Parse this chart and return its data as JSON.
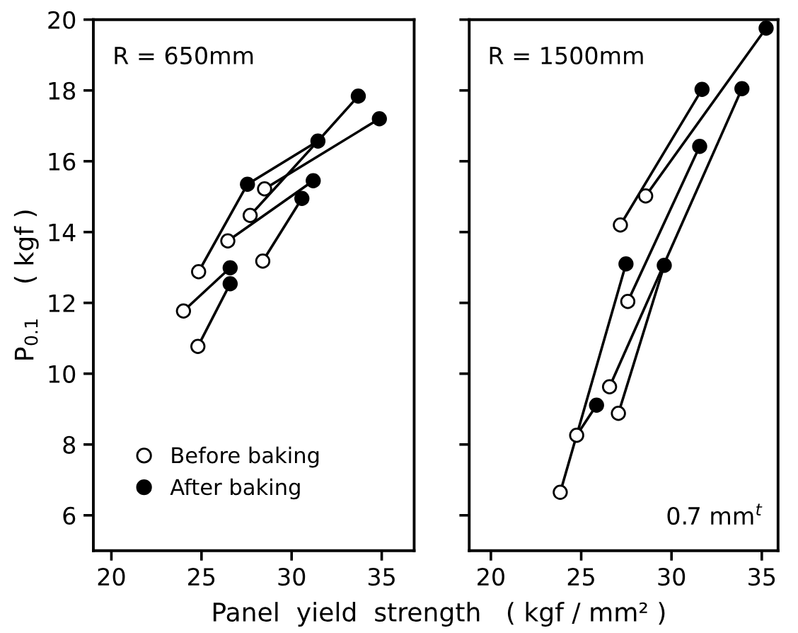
{
  "chart_data": [
    {
      "type": "scatter",
      "ylabel": "P$_{0.1}$    ( kgf )",
      "xlabel": "Panel  yield  strength   ( kgf / mm² )",
      "xlim": [
        19,
        36.8
      ],
      "ylim": [
        5,
        20
      ],
      "xticks": [
        20,
        25,
        30,
        35
      ],
      "yticks": [
        6,
        8,
        10,
        12,
        14,
        16,
        18,
        20
      ],
      "grid": false,
      "legend": "bottom left",
      "annotations": [
        "R = 650mm"
      ],
      "series": [
        {
          "name": "Before baking",
          "marker": "circle",
          "color": "#ffffff",
          "x": [
            24.84,
            24.0,
            24.8,
            26.46,
            27.7,
            28.5,
            28.4
          ],
          "values": [
            12.88,
            11.77,
            10.77,
            13.75,
            14.47,
            15.22,
            13.18
          ]
        },
        {
          "name": "After baking",
          "marker": "circle",
          "color": "#000000",
          "x": [
            27.55,
            31.46,
            33.7,
            34.87,
            31.2,
            30.57,
            26.59,
            26.59
          ],
          "values": [
            15.35,
            16.57,
            17.84,
            17.2,
            15.45,
            14.95,
            12.99,
            12.54
          ]
        },
        {
          "type": "line",
          "color": "#000000",
          "x": [
            24.84,
            27.55,
            31.46,
            33.7
          ],
          "values": [
            12.88,
            15.35,
            16.57,
            17.84
          ]
        },
        {
          "type": "line",
          "color": "#000000",
          "x": [
            27.7,
            31.46
          ],
          "values": [
            14.47,
            16.57
          ]
        },
        {
          "type": "line",
          "color": "#000000",
          "x": [
            28.5,
            34.87
          ],
          "values": [
            15.22,
            17.2
          ]
        },
        {
          "type": "line",
          "color": "#000000",
          "x": [
            26.46,
            31.2
          ],
          "values": [
            13.75,
            15.45
          ]
        },
        {
          "type": "line",
          "color": "#000000",
          "x": [
            28.4,
            30.57
          ],
          "values": [
            13.18,
            14.95
          ]
        },
        {
          "type": "line",
          "color": "#000000",
          "x": [
            24.0,
            26.59
          ],
          "values": [
            11.77,
            12.99
          ]
        },
        {
          "type": "line",
          "color": "#000000",
          "x": [
            24.8,
            26.59
          ],
          "values": [
            10.77,
            12.54
          ]
        }
      ]
    },
    {
      "type": "scatter",
      "xlim": [
        18.8,
        35.9
      ],
      "ylim": [
        5,
        20
      ],
      "xticks": [
        20,
        25,
        30,
        35
      ],
      "yticks": [
        6,
        8,
        10,
        12,
        14,
        16,
        18,
        20
      ],
      "grid": false,
      "tick_labels": "x",
      "annotations": [
        "R = 1500mm",
        "0.7 mm$^{t}$"
      ],
      "series": [
        {
          "marker": "circle",
          "color": "#ffffff",
          "x": [
            23.84,
            24.75,
            26.57,
            27.06,
            27.58,
            27.17,
            28.57
          ],
          "values": [
            6.65,
            8.26,
            9.63,
            8.88,
            12.04,
            14.2,
            15.02
          ]
        },
        {
          "marker": "circle",
          "color": "#000000",
          "x": [
            35.24,
            31.69,
            33.9,
            31.56,
            27.48,
            29.6,
            25.85
          ],
          "values": [
            19.76,
            18.03,
            18.05,
            16.42,
            13.1,
            13.06,
            9.11
          ]
        },
        {
          "type": "line",
          "color": "#000000",
          "x": [
            23.84,
            27.48
          ],
          "values": [
            6.65,
            13.1
          ]
        },
        {
          "type": "line",
          "color": "#000000",
          "x": [
            24.75,
            25.85
          ],
          "values": [
            8.26,
            9.11
          ]
        },
        {
          "type": "line",
          "color": "#000000",
          "x": [
            26.57,
            33.9
          ],
          "values": [
            9.63,
            18.05
          ]
        },
        {
          "type": "line",
          "color": "#000000",
          "x": [
            27.06,
            29.6
          ],
          "values": [
            8.88,
            13.06
          ]
        },
        {
          "type": "line",
          "color": "#000000",
          "x": [
            27.58,
            31.56
          ],
          "values": [
            12.04,
            16.42
          ]
        },
        {
          "type": "line",
          "color": "#000000",
          "x": [
            27.17,
            31.69
          ],
          "values": [
            14.2,
            18.03
          ]
        },
        {
          "type": "line",
          "color": "#000000",
          "x": [
            28.57,
            35.24
          ],
          "values": [
            15.02,
            19.76
          ]
        }
      ]
    }
  ]
}
